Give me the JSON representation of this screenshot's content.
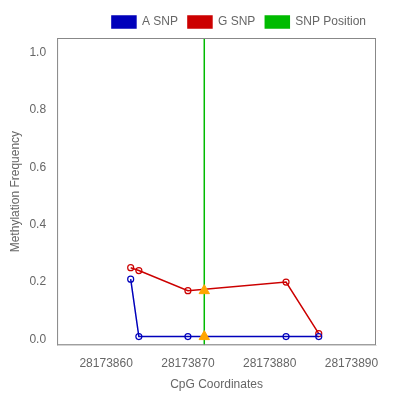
{
  "chart_data": {
    "type": "line",
    "xlabel": "CpG Coordinates",
    "ylabel": "Methylation Frequency",
    "series": [
      {
        "name": "A SNP",
        "type": "line",
        "color": "#0000bb",
        "marker": "circle",
        "x": [
          28173863,
          28173864,
          28173870,
          28173882,
          28173886
        ],
        "values": [
          0.21,
          0.01,
          0.01,
          0.01,
          0.01
        ]
      },
      {
        "name": "G SNP",
        "type": "line",
        "color": "#cc0000",
        "marker": "circle",
        "x": [
          28173863,
          28173864,
          28173870,
          28173882,
          28173886
        ],
        "values": [
          0.25,
          0.24,
          0.17,
          0.2,
          0.02
        ]
      },
      {
        "name": "SNP Position",
        "type": "vline",
        "color": "#00bb00",
        "x": 28173872
      },
      {
        "type": "scatter",
        "color": "#ffa500",
        "marker": "triangle",
        "x": [
          28173872,
          28173872
        ],
        "values": [
          0.17,
          0.01
        ]
      }
    ],
    "xlim": [
      28173854,
      28173893
    ],
    "ylim": [
      -0.02,
      1.05
    ],
    "xticks": [
      28173860,
      28173870,
      28173880,
      28173890
    ],
    "yticks": [
      {
        "value": 0.0,
        "label": "0.0"
      },
      0.2,
      0.4,
      0.6,
      0.8,
      {
        "value": 1.0,
        "label": "1.0"
      }
    ],
    "legend": "upper right",
    "grid": false
  }
}
